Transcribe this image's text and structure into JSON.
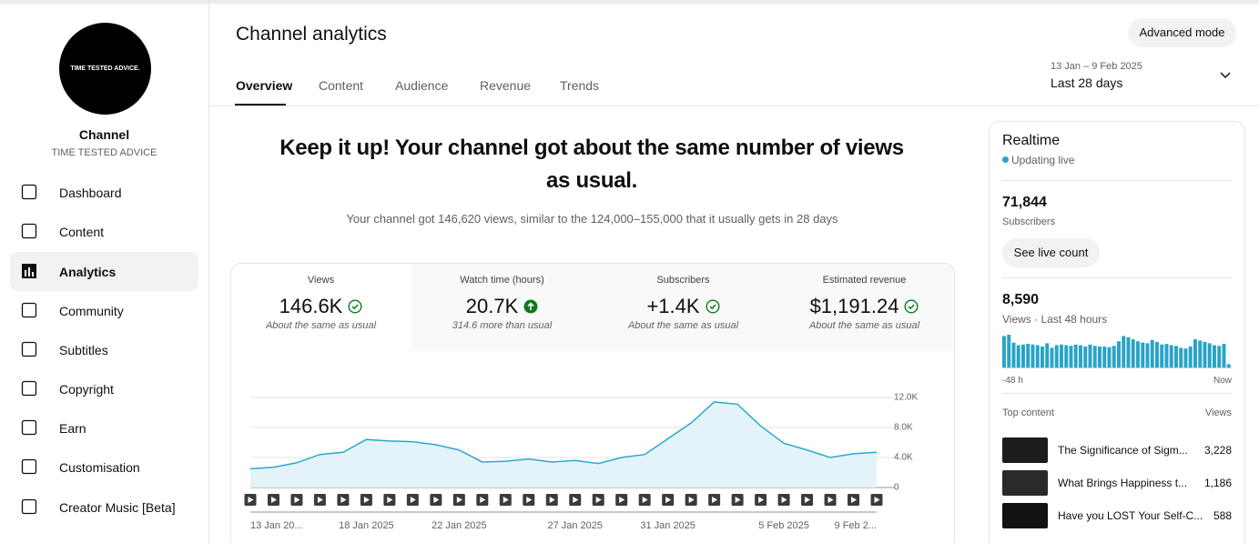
{
  "sidebar": {
    "logo_text": "TIME TESTED ADVICE.",
    "channel_name": "Channel",
    "channel_handle": "TIME TESTED ADVICE",
    "nav": [
      "Dashboard",
      "Content",
      "Analytics",
      "Community",
      "Subtitles",
      "Copyright",
      "Earn",
      "Customisation",
      "Creator Music [Beta]"
    ]
  },
  "header": {
    "title": "Channel analytics",
    "tabs": [
      "Overview",
      "Content",
      "Audience",
      "Revenue",
      "Trends"
    ],
    "advanced_button": "Advanced mode",
    "date_range": "13 Jan – 9 Feb 2025",
    "period": "Last 28 days"
  },
  "summary": {
    "headline": "Keep it up! Your channel got about the same number of views as usual.",
    "text": "Your channel got 146,620 views, similar to the 124,000–155,000 that it usually gets in 28 days"
  },
  "metrics": [
    {
      "label": "Views",
      "value": "146.6K",
      "note": "About the same as usual"
    },
    {
      "label": "Watch time (hours)",
      "value": "20.7K",
      "note": "314.6 more than usual"
    },
    {
      "label": "Subscribers",
      "value": "+1.4K",
      "note": "About the same as usual"
    },
    {
      "label": "Estimated revenue",
      "value": "$1,191.24",
      "note": "About the same as usual"
    }
  ],
  "chart_data": {
    "type": "line",
    "categories": [
      "13 Jan 20...",
      null,
      null,
      null,
      null,
      "18 Jan 2025",
      null,
      null,
      null,
      "22 Jan 2025",
      null,
      null,
      null,
      null,
      "27 Jan 2025",
      null,
      null,
      null,
      "31 Jan 2025",
      null,
      null,
      null,
      null,
      "5 Feb 2025",
      null,
      null,
      null,
      "9 Feb 2..."
    ],
    "values": [
      2500,
      2700,
      3300,
      4400,
      4700,
      6400,
      6200,
      6100,
      5700,
      5000,
      3400,
      3500,
      3800,
      3400,
      3600,
      3200,
      4000,
      4400,
      6500,
      8600,
      11400,
      11100,
      8200,
      5900,
      5000,
      4000,
      4500,
      4700
    ],
    "color": "#2aa8d0",
    "ylim": [
      0,
      12000
    ],
    "yticks": [
      0,
      {
        "value": 4000,
        "label": "4.0K"
      },
      {
        "value": 8000,
        "label": "8.0K"
      },
      {
        "value": 12000,
        "label": "12.0K"
      }
    ],
    "grid": true
  },
  "realtime": {
    "title": "Realtime",
    "status": "Updating live",
    "subscribers": "71,844",
    "subscribers_label": "Subscribers",
    "live_button": "See live count",
    "views": "8,590",
    "views_label": "Views · Last 48 hours",
    "chart_data": {
      "type": "bar",
      "values": [
        240,
        250,
        190,
        170,
        175,
        180,
        175,
        170,
        160,
        185,
        150,
        170,
        175,
        170,
        165,
        175,
        170,
        160,
        175,
        165,
        160,
        160,
        155,
        165,
        200,
        240,
        230,
        215,
        200,
        190,
        185,
        210,
        195,
        175,
        180,
        170,
        165,
        150,
        145,
        160,
        215,
        205,
        195,
        185,
        170,
        165,
        180,
        25
      ],
      "color": "#29a3c9",
      "x_start_label": "-48 h",
      "x_end_label": "Now"
    },
    "top_content_label": "Top content",
    "top_views_label": "Views",
    "top_content": [
      {
        "title": "The Significance of Sigm...",
        "views": "3,228"
      },
      {
        "title": "What Brings Happiness t...",
        "views": "1,186"
      },
      {
        "title": "Have you LOST Your Self-C...",
        "views": "588"
      }
    ]
  }
}
